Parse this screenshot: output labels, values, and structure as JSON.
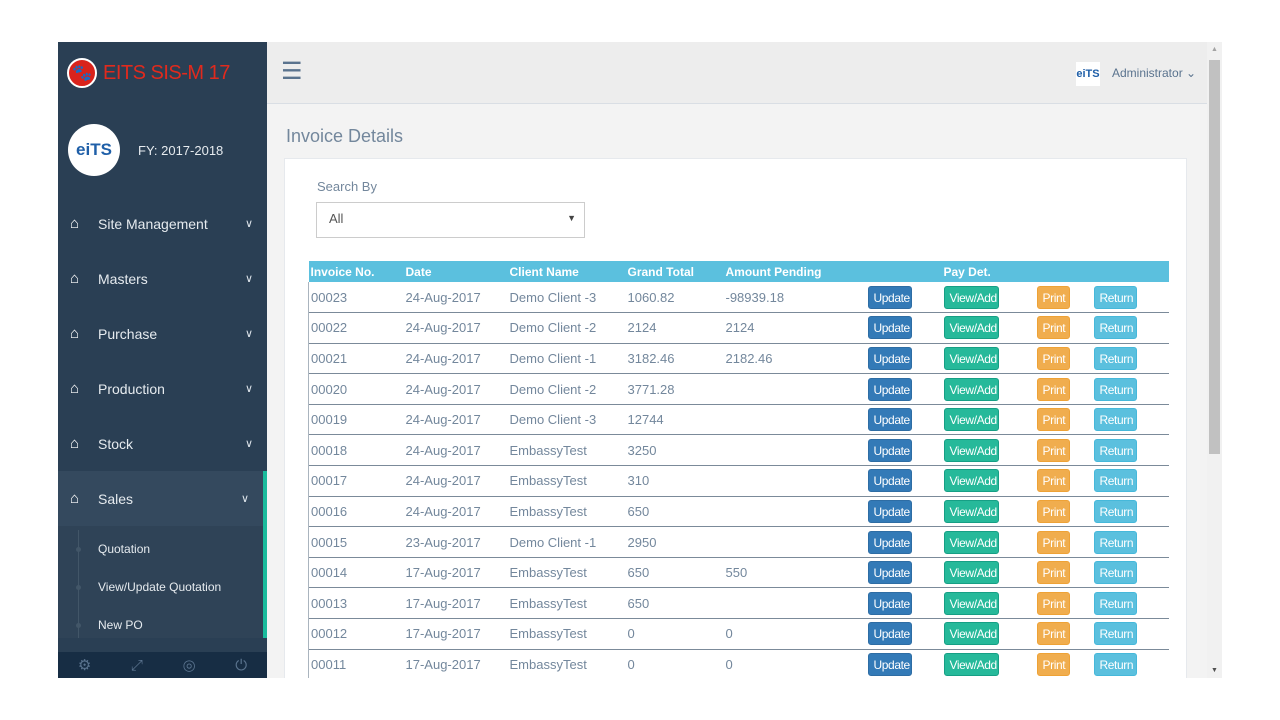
{
  "app": {
    "name": "EITS SIS-M 17",
    "logo_icon": "paw-icon",
    "fy": "FY: 2017-2018",
    "user_logo_text": "eiTS",
    "profile_logo_text": "eiTS"
  },
  "sidebar": {
    "items": [
      {
        "label": "Site Management",
        "icon": "home-icon"
      },
      {
        "label": "Masters",
        "icon": "home-icon"
      },
      {
        "label": "Purchase",
        "icon": "home-icon"
      },
      {
        "label": "Production",
        "icon": "home-icon"
      },
      {
        "label": "Stock",
        "icon": "home-icon"
      },
      {
        "label": "Sales",
        "icon": "home-icon",
        "active": true
      }
    ],
    "sub_items": [
      "Quotation",
      "View/Update Quotation",
      "New PO"
    ],
    "footer_icons": [
      "settings-icon",
      "fullscreen-icon",
      "lock-icon",
      "power-icon"
    ]
  },
  "topbar": {
    "user": "Administrator"
  },
  "page": {
    "title": "Invoice Details",
    "search_label": "Search By",
    "search_value": "All"
  },
  "table": {
    "headers": [
      "Invoice No.",
      "Date",
      "Client Name",
      "Grand Total",
      "Amount Pending",
      "",
      "Pay Det.",
      "",
      ""
    ],
    "buttons": {
      "update": "Update",
      "view": "View/Add",
      "print": "Print",
      "return": "Return"
    },
    "rows": [
      {
        "invoice": "00023",
        "date": "24-Aug-2017",
        "client": "Demo Client -3",
        "total": "1060.82",
        "pending": "-98939.18"
      },
      {
        "invoice": "00022",
        "date": "24-Aug-2017",
        "client": "Demo Client -2",
        "total": "2124",
        "pending": "2124"
      },
      {
        "invoice": "00021",
        "date": "24-Aug-2017",
        "client": "Demo Client -1",
        "total": "3182.46",
        "pending": "2182.46"
      },
      {
        "invoice": "00020",
        "date": "24-Aug-2017",
        "client": "Demo Client -2",
        "total": "3771.28",
        "pending": ""
      },
      {
        "invoice": "00019",
        "date": "24-Aug-2017",
        "client": "Demo Client -3",
        "total": "12744",
        "pending": ""
      },
      {
        "invoice": "00018",
        "date": "24-Aug-2017",
        "client": "EmbassyTest",
        "total": "3250",
        "pending": ""
      },
      {
        "invoice": "00017",
        "date": "24-Aug-2017",
        "client": "EmbassyTest",
        "total": "310",
        "pending": ""
      },
      {
        "invoice": "00016",
        "date": "24-Aug-2017",
        "client": "EmbassyTest",
        "total": "650",
        "pending": ""
      },
      {
        "invoice": "00015",
        "date": "23-Aug-2017",
        "client": "Demo Client -1",
        "total": "2950",
        "pending": ""
      },
      {
        "invoice": "00014",
        "date": "17-Aug-2017",
        "client": "EmbassyTest",
        "total": "650",
        "pending": "550"
      },
      {
        "invoice": "00013",
        "date": "17-Aug-2017",
        "client": "EmbassyTest",
        "total": "650",
        "pending": ""
      },
      {
        "invoice": "00012",
        "date": "17-Aug-2017",
        "client": "EmbassyTest",
        "total": "0",
        "pending": "0"
      },
      {
        "invoice": "00011",
        "date": "17-Aug-2017",
        "client": "EmbassyTest",
        "total": "0",
        "pending": "0"
      }
    ]
  },
  "colors": {
    "sidebar": "#2a3f54",
    "accent": "#1abb9c",
    "header_row": "#5bc0de",
    "update": "#337ab7",
    "view": "#26b99a",
    "print": "#f0ad4e",
    "return": "#5bc0de"
  }
}
